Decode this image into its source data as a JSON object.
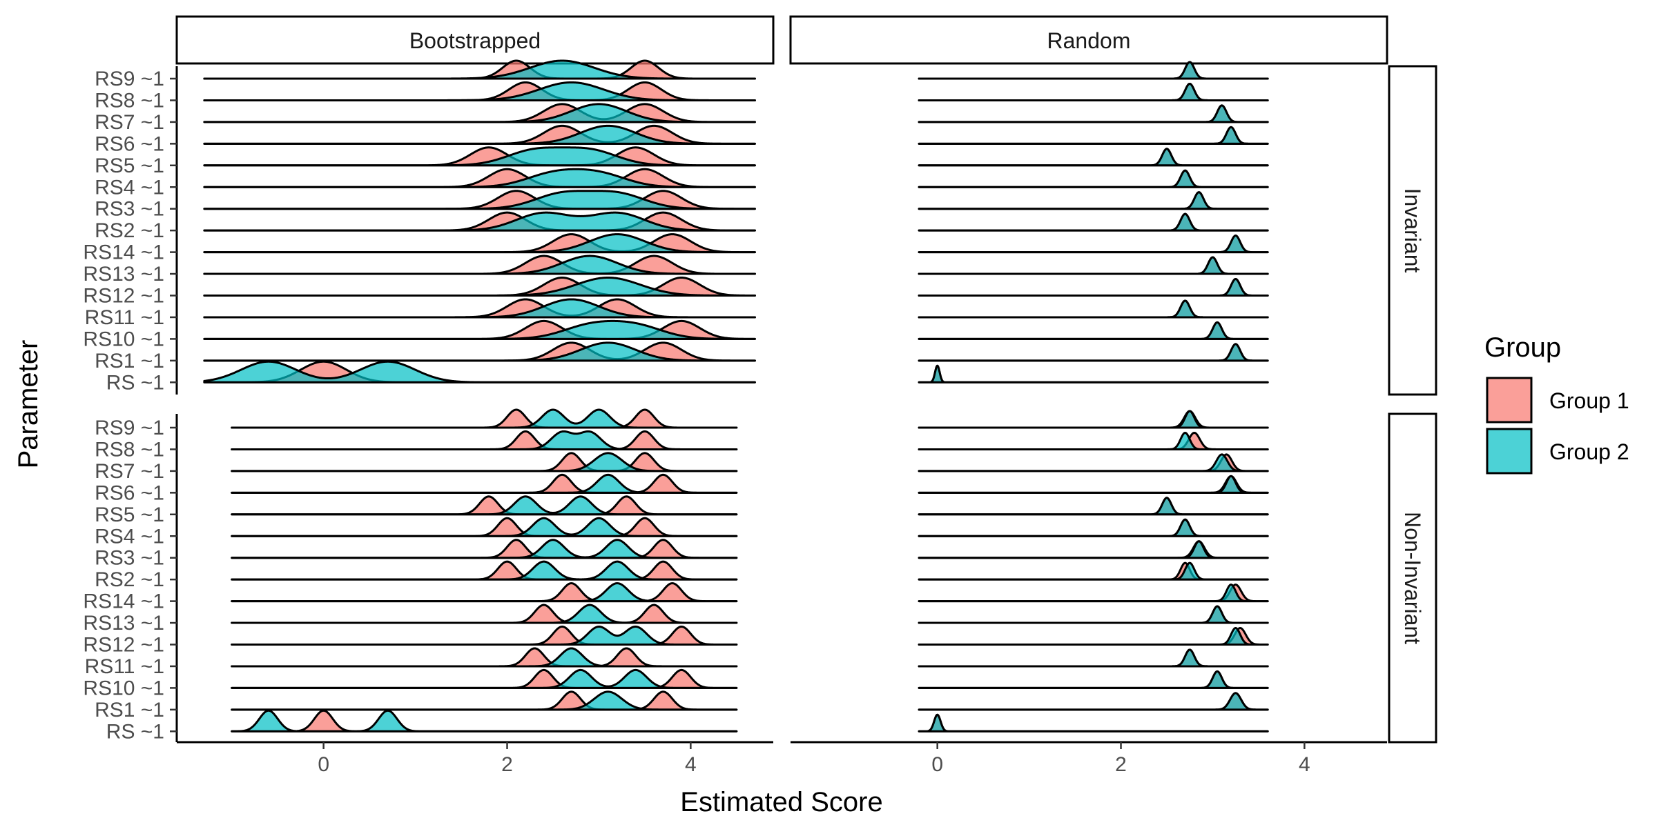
{
  "chart_data": {
    "type": "ridgeline",
    "xlabel": "Estimated Score",
    "ylabel": "Parameter",
    "x_ticks": [
      0,
      2,
      4
    ],
    "xlim": [
      -1.6,
      4.9
    ],
    "column_facets": [
      "Bootstrapped",
      "Random"
    ],
    "row_facets": [
      "Invariant",
      "Non-Invariant"
    ],
    "parameters": [
      "RS9 ~1",
      "RS8 ~1",
      "RS7 ~1",
      "RS6 ~1",
      "RS5 ~1",
      "RS4 ~1",
      "RS3 ~1",
      "RS2 ~1",
      "RS14 ~1",
      "RS13 ~1",
      "RS12 ~1",
      "RS11 ~1",
      "RS10 ~1",
      "RS1 ~1",
      "RS ~1"
    ],
    "legend": {
      "title": "Group",
      "items": [
        {
          "label": "Group 1",
          "color": "#F8766D"
        },
        {
          "label": "Group 2",
          "color": "#00BFC4"
        }
      ]
    },
    "panels": [
      {
        "column": "Bootstrapped",
        "row": "Invariant",
        "line_range": [
          -1.3,
          4.7
        ],
        "ridges": [
          {
            "parameter": "RS9 ~1",
            "group1_modes": [
              2.1,
              3.5
            ],
            "group2_modes": [
              2.6
            ],
            "g1_width": 0.15,
            "g2_width": 0.35
          },
          {
            "parameter": "RS8 ~1",
            "group1_modes": [
              2.2,
              3.5
            ],
            "group2_modes": [
              2.7
            ],
            "g1_width": 0.18,
            "g2_width": 0.35
          },
          {
            "parameter": "RS7 ~1",
            "group1_modes": [
              2.6,
              3.5
            ],
            "group2_modes": [
              3.0
            ],
            "g1_width": 0.2,
            "g2_width": 0.3
          },
          {
            "parameter": "RS6 ~1",
            "group1_modes": [
              2.6,
              3.6
            ],
            "group2_modes": [
              3.1
            ],
            "g1_width": 0.2,
            "g2_width": 0.3
          },
          {
            "parameter": "RS5 ~1",
            "group1_modes": [
              1.8,
              3.4
            ],
            "group2_modes": [
              2.3,
              2.9
            ],
            "g1_width": 0.2,
            "g2_width": 0.3
          },
          {
            "parameter": "RS4 ~1",
            "group1_modes": [
              2.0,
              3.5
            ],
            "group2_modes": [
              2.5,
              3.0
            ],
            "g1_width": 0.2,
            "g2_width": 0.3
          },
          {
            "parameter": "RS3 ~1",
            "group1_modes": [
              2.1,
              3.7
            ],
            "group2_modes": [
              2.6,
              3.2
            ],
            "g1_width": 0.2,
            "g2_width": 0.3
          },
          {
            "parameter": "RS2 ~1",
            "group1_modes": [
              2.0,
              3.7
            ],
            "group2_modes": [
              2.4,
              3.2
            ],
            "g1_width": 0.2,
            "g2_width": 0.3
          },
          {
            "parameter": "RS14 ~1",
            "group1_modes": [
              2.7,
              3.8
            ],
            "group2_modes": [
              3.2
            ],
            "g1_width": 0.2,
            "g2_width": 0.3
          },
          {
            "parameter": "RS13 ~1",
            "group1_modes": [
              2.4,
              3.6
            ],
            "group2_modes": [
              2.9
            ],
            "g1_width": 0.2,
            "g2_width": 0.3
          },
          {
            "parameter": "RS12 ~1",
            "group1_modes": [
              2.6,
              3.9
            ],
            "group2_modes": [
              3.1
            ],
            "g1_width": 0.2,
            "g2_width": 0.35
          },
          {
            "parameter": "RS11 ~1",
            "group1_modes": [
              2.2,
              3.2
            ],
            "group2_modes": [
              2.7
            ],
            "g1_width": 0.2,
            "g2_width": 0.3
          },
          {
            "parameter": "RS10 ~1",
            "group1_modes": [
              2.4,
              3.9
            ],
            "group2_modes": [
              2.9,
              3.4
            ],
            "g1_width": 0.2,
            "g2_width": 0.3
          },
          {
            "parameter": "RS1 ~1",
            "group1_modes": [
              2.7,
              3.7
            ],
            "group2_modes": [
              3.1
            ],
            "g1_width": 0.2,
            "g2_width": 0.3
          },
          {
            "parameter": "RS ~1",
            "group1_modes": [
              0.0
            ],
            "group2_modes": [
              -0.6,
              0.7
            ],
            "g1_width": 0.25,
            "g2_width": 0.3
          }
        ]
      },
      {
        "column": "Random",
        "row": "Invariant",
        "line_range": [
          -0.2,
          3.6
        ],
        "ridges": [
          {
            "parameter": "RS9 ~1",
            "group1_modes": [
              2.75
            ],
            "group2_modes": [
              2.75
            ],
            "g1_width": 0.05,
            "g2_width": 0.05
          },
          {
            "parameter": "RS8 ~1",
            "group1_modes": [
              2.75
            ],
            "group2_modes": [
              2.75
            ],
            "g1_width": 0.05,
            "g2_width": 0.05
          },
          {
            "parameter": "RS7 ~1",
            "group1_modes": [
              3.1
            ],
            "group2_modes": [
              3.1
            ],
            "g1_width": 0.05,
            "g2_width": 0.05
          },
          {
            "parameter": "RS6 ~1",
            "group1_modes": [
              3.2
            ],
            "group2_modes": [
              3.2
            ],
            "g1_width": 0.05,
            "g2_width": 0.05
          },
          {
            "parameter": "RS5 ~1",
            "group1_modes": [
              2.5
            ],
            "group2_modes": [
              2.5
            ],
            "g1_width": 0.05,
            "g2_width": 0.05
          },
          {
            "parameter": "RS4 ~1",
            "group1_modes": [
              2.7
            ],
            "group2_modes": [
              2.7
            ],
            "g1_width": 0.05,
            "g2_width": 0.05
          },
          {
            "parameter": "RS3 ~1",
            "group1_modes": [
              2.85
            ],
            "group2_modes": [
              2.85
            ],
            "g1_width": 0.05,
            "g2_width": 0.05
          },
          {
            "parameter": "RS2 ~1",
            "group1_modes": [
              2.7
            ],
            "group2_modes": [
              2.7
            ],
            "g1_width": 0.05,
            "g2_width": 0.05
          },
          {
            "parameter": "RS14 ~1",
            "group1_modes": [
              3.25
            ],
            "group2_modes": [
              3.25
            ],
            "g1_width": 0.05,
            "g2_width": 0.05
          },
          {
            "parameter": "RS13 ~1",
            "group1_modes": [
              3.0
            ],
            "group2_modes": [
              3.0
            ],
            "g1_width": 0.05,
            "g2_width": 0.05
          },
          {
            "parameter": "RS12 ~1",
            "group1_modes": [
              3.25
            ],
            "group2_modes": [
              3.25
            ],
            "g1_width": 0.05,
            "g2_width": 0.05
          },
          {
            "parameter": "RS11 ~1",
            "group1_modes": [
              2.7
            ],
            "group2_modes": [
              2.7
            ],
            "g1_width": 0.05,
            "g2_width": 0.05
          },
          {
            "parameter": "RS10 ~1",
            "group1_modes": [
              3.05
            ],
            "group2_modes": [
              3.05
            ],
            "g1_width": 0.05,
            "g2_width": 0.05
          },
          {
            "parameter": "RS1 ~1",
            "group1_modes": [
              3.25
            ],
            "group2_modes": [
              3.25
            ],
            "g1_width": 0.05,
            "g2_width": 0.05
          },
          {
            "parameter": "RS ~1",
            "group1_modes": [
              0.0
            ],
            "group2_modes": [
              0.0
            ],
            "g1_width": 0.025,
            "g2_width": 0.025
          }
        ]
      },
      {
        "column": "Bootstrapped",
        "row": "Non-Invariant",
        "line_range": [
          -1.0,
          4.5
        ],
        "ridges": [
          {
            "parameter": "RS9 ~1",
            "group1_modes": [
              2.1,
              3.5
            ],
            "group2_modes": [
              2.5,
              3.0
            ],
            "g1_width": 0.1,
            "g2_width": 0.12
          },
          {
            "parameter": "RS8 ~1",
            "group1_modes": [
              2.2,
              3.5
            ],
            "group2_modes": [
              2.6,
              2.9
            ],
            "g1_width": 0.1,
            "g2_width": 0.12
          },
          {
            "parameter": "RS7 ~1",
            "group1_modes": [
              2.7,
              3.5
            ],
            "group2_modes": [
              3.1
            ],
            "g1_width": 0.1,
            "g2_width": 0.15
          },
          {
            "parameter": "RS6 ~1",
            "group1_modes": [
              2.6,
              3.7
            ],
            "group2_modes": [
              3.1
            ],
            "g1_width": 0.1,
            "g2_width": 0.12
          },
          {
            "parameter": "RS5 ~1",
            "group1_modes": [
              1.8,
              3.3
            ],
            "group2_modes": [
              2.2,
              2.8
            ],
            "g1_width": 0.1,
            "g2_width": 0.12
          },
          {
            "parameter": "RS4 ~1",
            "group1_modes": [
              2.0,
              3.5
            ],
            "group2_modes": [
              2.4,
              3.0
            ],
            "g1_width": 0.1,
            "g2_width": 0.12
          },
          {
            "parameter": "RS3 ~1",
            "group1_modes": [
              2.1,
              3.7
            ],
            "group2_modes": [
              2.5,
              3.2
            ],
            "g1_width": 0.1,
            "g2_width": 0.12
          },
          {
            "parameter": "RS2 ~1",
            "group1_modes": [
              2.0,
              3.7
            ],
            "group2_modes": [
              2.4,
              3.2
            ],
            "g1_width": 0.1,
            "g2_width": 0.12
          },
          {
            "parameter": "RS14 ~1",
            "group1_modes": [
              2.7,
              3.8
            ],
            "group2_modes": [
              3.2
            ],
            "g1_width": 0.1,
            "g2_width": 0.12
          },
          {
            "parameter": "RS13 ~1",
            "group1_modes": [
              2.4,
              3.6
            ],
            "group2_modes": [
              2.9
            ],
            "g1_width": 0.1,
            "g2_width": 0.12
          },
          {
            "parameter": "RS12 ~1",
            "group1_modes": [
              2.6,
              3.9
            ],
            "group2_modes": [
              3.0,
              3.4
            ],
            "g1_width": 0.1,
            "g2_width": 0.12
          },
          {
            "parameter": "RS11 ~1",
            "group1_modes": [
              2.3,
              3.3
            ],
            "group2_modes": [
              2.7
            ],
            "g1_width": 0.1,
            "g2_width": 0.12
          },
          {
            "parameter": "RS10 ~1",
            "group1_modes": [
              2.4,
              3.9
            ],
            "group2_modes": [
              2.8,
              3.4
            ],
            "g1_width": 0.1,
            "g2_width": 0.12
          },
          {
            "parameter": "RS1 ~1",
            "group1_modes": [
              2.7,
              3.7
            ],
            "group2_modes": [
              3.1
            ],
            "g1_width": 0.1,
            "g2_width": 0.15
          },
          {
            "parameter": "RS ~1",
            "group1_modes": [
              0.0
            ],
            "group2_modes": [
              -0.6,
              0.7
            ],
            "g1_width": 0.1,
            "g2_width": 0.1
          }
        ]
      },
      {
        "column": "Random",
        "row": "Non-Invariant",
        "line_range": [
          -0.2,
          3.6
        ],
        "ridges": [
          {
            "parameter": "RS9 ~1",
            "group1_modes": [
              2.75
            ],
            "group2_modes": [
              2.75
            ],
            "g1_width": 0.06,
            "g2_width": 0.05
          },
          {
            "parameter": "RS8 ~1",
            "group1_modes": [
              2.8
            ],
            "group2_modes": [
              2.7
            ],
            "g1_width": 0.06,
            "g2_width": 0.05
          },
          {
            "parameter": "RS7 ~1",
            "group1_modes": [
              3.15
            ],
            "group2_modes": [
              3.1
            ],
            "g1_width": 0.06,
            "g2_width": 0.06
          },
          {
            "parameter": "RS6 ~1",
            "group1_modes": [
              3.2
            ],
            "group2_modes": [
              3.2
            ],
            "g1_width": 0.06,
            "g2_width": 0.05
          },
          {
            "parameter": "RS5 ~1",
            "group1_modes": [
              2.5
            ],
            "group2_modes": [
              2.5
            ],
            "g1_width": 0.05,
            "g2_width": 0.05
          },
          {
            "parameter": "RS4 ~1",
            "group1_modes": [
              2.7
            ],
            "group2_modes": [
              2.7
            ],
            "g1_width": 0.05,
            "g2_width": 0.05
          },
          {
            "parameter": "RS3 ~1",
            "group1_modes": [
              2.85
            ],
            "group2_modes": [
              2.85
            ],
            "g1_width": 0.06,
            "g2_width": 0.05
          },
          {
            "parameter": "RS2 ~1",
            "group1_modes": [
              2.7
            ],
            "group2_modes": [
              2.75
            ],
            "g1_width": 0.05,
            "g2_width": 0.05
          },
          {
            "parameter": "RS14 ~1",
            "group1_modes": [
              3.25
            ],
            "group2_modes": [
              3.2
            ],
            "g1_width": 0.06,
            "g2_width": 0.05
          },
          {
            "parameter": "RS13 ~1",
            "group1_modes": [
              3.05
            ],
            "group2_modes": [
              3.05
            ],
            "g1_width": 0.05,
            "g2_width": 0.05
          },
          {
            "parameter": "RS12 ~1",
            "group1_modes": [
              3.3
            ],
            "group2_modes": [
              3.25
            ],
            "g1_width": 0.06,
            "g2_width": 0.05
          },
          {
            "parameter": "RS11 ~1",
            "group1_modes": [
              2.75
            ],
            "group2_modes": [
              2.75
            ],
            "g1_width": 0.05,
            "g2_width": 0.05
          },
          {
            "parameter": "RS10 ~1",
            "group1_modes": [
              3.05
            ],
            "group2_modes": [
              3.05
            ],
            "g1_width": 0.05,
            "g2_width": 0.05
          },
          {
            "parameter": "RS1 ~1",
            "group1_modes": [
              3.25
            ],
            "group2_modes": [
              3.25
            ],
            "g1_width": 0.06,
            "g2_width": 0.06
          },
          {
            "parameter": "RS ~1",
            "group1_modes": [
              0.0
            ],
            "group2_modes": [
              0.0
            ],
            "g1_width": 0.035,
            "g2_width": 0.035
          }
        ]
      }
    ]
  }
}
